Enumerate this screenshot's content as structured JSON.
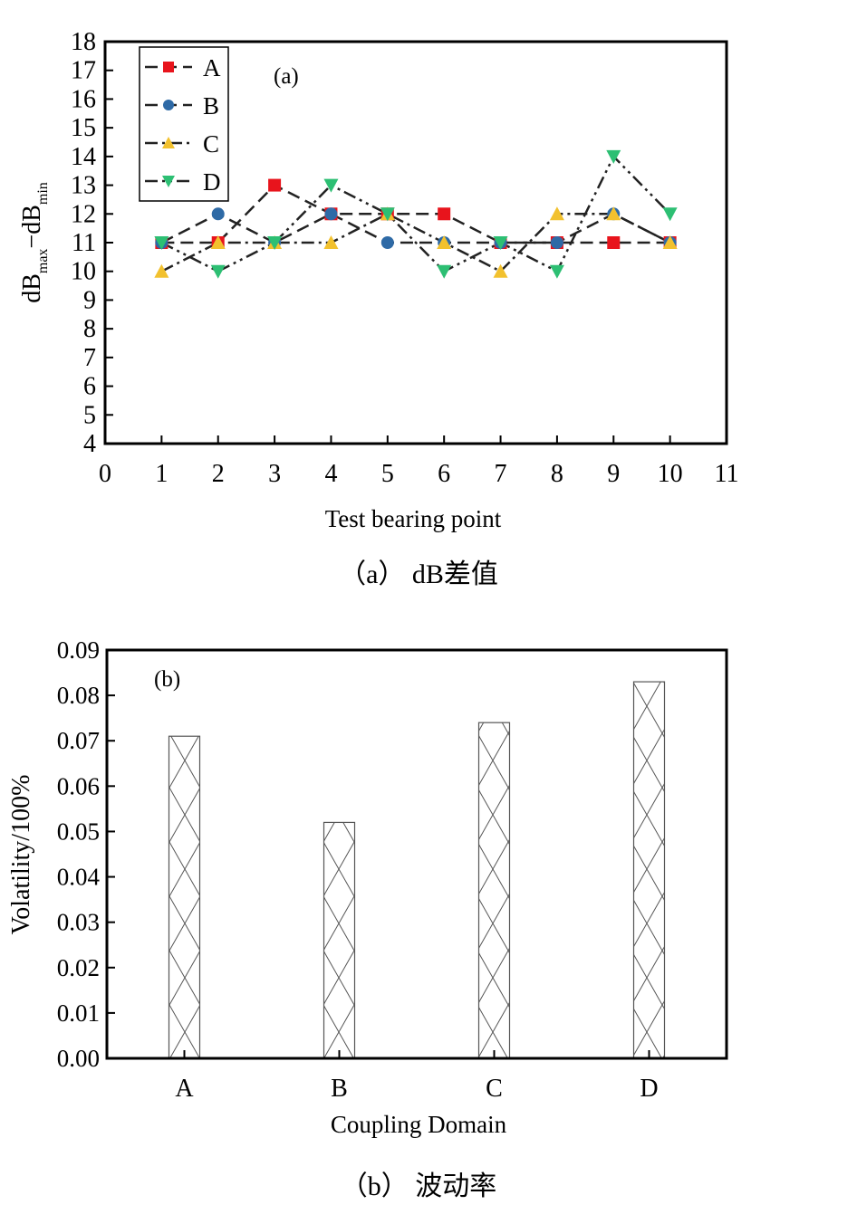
{
  "chart_data": [
    {
      "type": "line",
      "panel_label": "(a)",
      "caption": "（a） dB差值",
      "xlabel": "Test bearing point",
      "ylabel_main": "dB",
      "ylabel_sub1": "max",
      "ylabel_mid": "−dB",
      "ylabel_sub2": "min",
      "xlim": [
        0,
        11
      ],
      "ylim": [
        4,
        18
      ],
      "xticks": [
        "0",
        "1",
        "2",
        "3",
        "4",
        "5",
        "6",
        "7",
        "8",
        "9",
        "10",
        "11"
      ],
      "yticks": [
        "4",
        "5",
        "6",
        "7",
        "8",
        "9",
        "10",
        "11",
        "12",
        "13",
        "14",
        "15",
        "16",
        "17",
        "18"
      ],
      "x": [
        1,
        2,
        3,
        4,
        5,
        6,
        7,
        8,
        9,
        10
      ],
      "legend_position": "top-left",
      "series": [
        {
          "name": "A",
          "color": "#e8141c",
          "marker": "square",
          "dash": "dash",
          "values": [
            11,
            11,
            13,
            12,
            12,
            12,
            11,
            11,
            11,
            11
          ]
        },
        {
          "name": "B",
          "color": "#2e6aa6",
          "marker": "circle",
          "dash": "dash",
          "values": [
            11,
            12,
            11,
            12,
            11,
            11,
            11,
            11,
            12,
            11
          ]
        },
        {
          "name": "C",
          "color": "#f2c12e",
          "marker": "triangle-up",
          "dash": "dashdot",
          "values": [
            10,
            11,
            11,
            11,
            12,
            11,
            10,
            12,
            12,
            11
          ]
        },
        {
          "name": "D",
          "color": "#2dbf73",
          "marker": "triangle-down",
          "dash": "dashdotdot",
          "values": [
            11,
            10,
            11,
            13,
            12,
            10,
            11,
            10,
            14,
            12
          ]
        }
      ]
    },
    {
      "type": "bar",
      "panel_label": "(b)",
      "caption": "（b） 波动率",
      "xlabel": "Coupling Domain",
      "ylabel": "Volatility/100%",
      "categories": [
        "A",
        "B",
        "C",
        "D"
      ],
      "values": [
        0.071,
        0.052,
        0.074,
        0.083
      ],
      "ylim": [
        0,
        0.09
      ],
      "yticks": [
        "0.00",
        "0.01",
        "0.02",
        "0.03",
        "0.04",
        "0.05",
        "0.06",
        "0.07",
        "0.08",
        "0.09"
      ],
      "bar_fill": "crosshatch"
    }
  ]
}
